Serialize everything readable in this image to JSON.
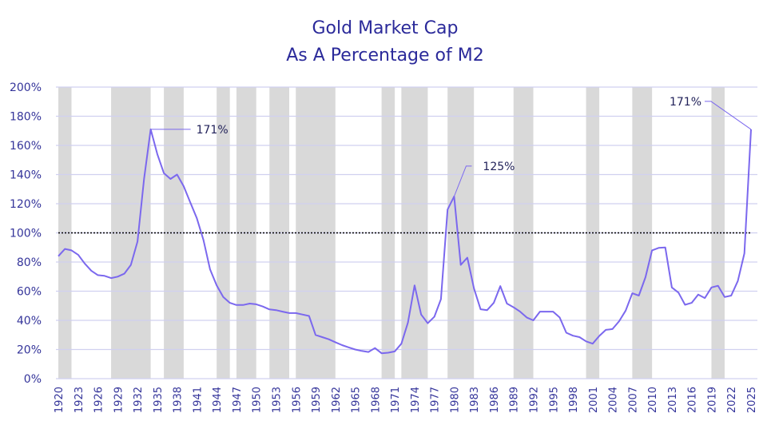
{
  "chart_data": {
    "type": "line",
    "title": "Gold Market Cap",
    "subtitle": "As A Percentage of M2",
    "xlabel": "",
    "ylabel": "",
    "x_start": 1920,
    "x_end": 2025,
    "ylim": [
      0,
      200
    ],
    "y_ticks": [
      "0%",
      "20%",
      "40%",
      "60%",
      "80%",
      "100%",
      "120%",
      "140%",
      "160%",
      "180%",
      "200%"
    ],
    "x_ticks": [
      "1920",
      "1923",
      "1926",
      "1929",
      "1932",
      "1935",
      "1938",
      "1941",
      "1944",
      "1947",
      "1950",
      "1953",
      "1956",
      "1959",
      "1962",
      "1965",
      "1968",
      "1971",
      "1974",
      "1977",
      "1980",
      "1983",
      "1986",
      "1989",
      "1992",
      "1995",
      "1998",
      "2001",
      "2004",
      "2007",
      "2010",
      "2013",
      "2016",
      "2019",
      "2022",
      "2025"
    ],
    "grid": "horizontal",
    "reference_line": {
      "value": 100,
      "style": "dotted",
      "color": "#000000"
    },
    "line_color": "#7B68EE",
    "shaded_color": "#D9D9D9",
    "shaded_periods": [
      [
        1920,
        1922
      ],
      [
        1928,
        1934
      ],
      [
        1936,
        1939
      ],
      [
        1944,
        1946
      ],
      [
        1947,
        1950
      ],
      [
        1952,
        1955
      ],
      [
        1956,
        1962
      ],
      [
        1969,
        1971
      ],
      [
        1972,
        1976
      ],
      [
        1979,
        1983
      ],
      [
        1989,
        1992
      ],
      [
        2000,
        2002
      ],
      [
        2007,
        2010
      ],
      [
        2019,
        2021
      ]
    ],
    "series": [
      {
        "values": [
          84,
          89,
          88,
          85,
          79,
          74,
          71,
          70.5,
          69,
          70,
          72,
          78,
          94,
          137,
          171,
          154,
          141,
          137,
          140,
          132,
          121,
          110,
          95,
          75,
          64,
          56,
          52,
          50.5,
          50.5,
          51.5,
          51,
          49.5,
          47.5,
          47,
          46,
          45,
          45,
          44,
          43,
          30,
          28.5,
          27,
          25,
          23,
          21.5,
          20,
          19,
          18.3,
          21,
          17.4,
          17.8,
          18.7,
          24,
          38.5,
          64,
          44,
          38,
          42.5,
          54.5,
          116,
          125,
          78,
          83,
          62,
          47.6,
          47,
          52,
          63.5,
          51.5,
          49,
          46,
          42,
          40,
          46,
          46,
          46,
          42,
          31.5,
          29.5,
          28.5,
          25.6,
          24,
          29.3,
          33.5,
          34,
          39.4,
          46.7,
          58.6,
          57,
          69.6,
          88,
          89.7,
          90,
          62.6,
          59,
          50.7,
          52,
          57.7,
          55.3,
          62.6,
          63.7,
          56,
          57,
          67,
          86,
          171
        ]
      }
    ],
    "annotations": [
      {
        "year": 1934,
        "text": "171%"
      },
      {
        "year": 1980,
        "text": "125%"
      },
      {
        "year": 2025,
        "text": "171%"
      }
    ]
  }
}
